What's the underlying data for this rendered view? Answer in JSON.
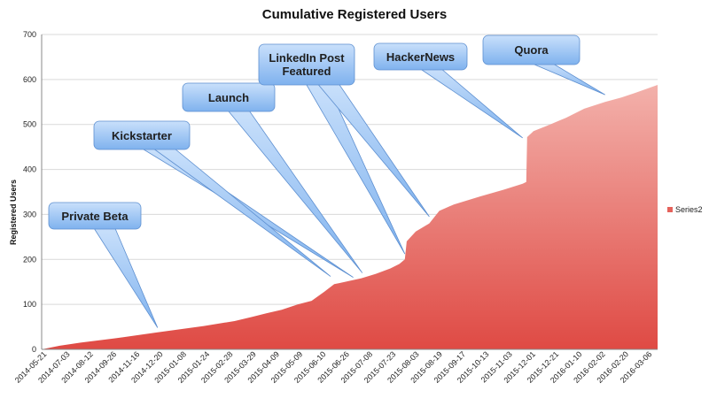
{
  "chart_data": {
    "type": "area",
    "title": "Cumulative Registered Users",
    "ylabel": "Registered Users",
    "xlabel": "",
    "ylim": [
      0,
      700
    ],
    "yticks": [
      0,
      100,
      200,
      300,
      400,
      500,
      600,
      700
    ],
    "xlim": [
      "2014-05-21",
      "2016-03-31"
    ],
    "xtick_labels": [
      "2014-05-21",
      "2014-07-03",
      "2014-08-12",
      "2014-09-26",
      "2014-11-16",
      "2014-12-20",
      "2015-01-08",
      "2015-01-24",
      "2015-02-28",
      "2015-03-29",
      "2015-04-09",
      "2015-05-09",
      "2015-06-10",
      "2015-06-26",
      "2015-07-08",
      "2015-07-23",
      "2015-08-03",
      "2015-08-19",
      "2015-09-17",
      "2015-10-13",
      "2015-11-03",
      "2015-12-01",
      "2015-12-21",
      "2016-01-10",
      "2016-02-02",
      "2016-02-20",
      "2016-03-06"
    ],
    "grid": true,
    "legend": "right",
    "series": [
      {
        "name": "Series2",
        "color": "#e5625b",
        "points": [
          {
            "x": "2014-05-21",
            "y": 0
          },
          {
            "x": "2014-06-10",
            "y": 8
          },
          {
            "x": "2014-07-03",
            "y": 15
          },
          {
            "x": "2014-08-12",
            "y": 25
          },
          {
            "x": "2014-09-26",
            "y": 38
          },
          {
            "x": "2014-11-16",
            "y": 52
          },
          {
            "x": "2014-12-20",
            "y": 63
          },
          {
            "x": "2015-01-08",
            "y": 72
          },
          {
            "x": "2015-01-24",
            "y": 80
          },
          {
            "x": "2015-02-10",
            "y": 88
          },
          {
            "x": "2015-02-28",
            "y": 100
          },
          {
            "x": "2015-03-15",
            "y": 108
          },
          {
            "x": "2015-03-29",
            "y": 128
          },
          {
            "x": "2015-04-09",
            "y": 145
          },
          {
            "x": "2015-04-25",
            "y": 152
          },
          {
            "x": "2015-05-09",
            "y": 158
          },
          {
            "x": "2015-05-25",
            "y": 168
          },
          {
            "x": "2015-06-10",
            "y": 180
          },
          {
            "x": "2015-06-20",
            "y": 190
          },
          {
            "x": "2015-06-26",
            "y": 200
          },
          {
            "x": "2015-06-28",
            "y": 240
          },
          {
            "x": "2015-07-08",
            "y": 262
          },
          {
            "x": "2015-07-23",
            "y": 280
          },
          {
            "x": "2015-08-03",
            "y": 308
          },
          {
            "x": "2015-08-19",
            "y": 322
          },
          {
            "x": "2015-09-17",
            "y": 340
          },
          {
            "x": "2015-10-13",
            "y": 355
          },
          {
            "x": "2015-11-03",
            "y": 368
          },
          {
            "x": "2015-11-07",
            "y": 372
          },
          {
            "x": "2015-11-08",
            "y": 472
          },
          {
            "x": "2015-11-15",
            "y": 485
          },
          {
            "x": "2015-12-01",
            "y": 498
          },
          {
            "x": "2015-12-21",
            "y": 515
          },
          {
            "x": "2016-01-10",
            "y": 535
          },
          {
            "x": "2016-02-02",
            "y": 550
          },
          {
            "x": "2016-02-20",
            "y": 560
          },
          {
            "x": "2016-03-06",
            "y": 570
          },
          {
            "x": "2016-03-31",
            "y": 588
          }
        ]
      }
    ],
    "annotations": [
      {
        "text": "Private Beta",
        "x": "2014-09-26"
      },
      {
        "text": "Kickstarter",
        "x": "2015-04-15"
      },
      {
        "text": "Launch",
        "x": "2015-05-10"
      },
      {
        "text": "LinkedIn Post\nFeatured",
        "x": "2015-06-26"
      },
      {
        "text": "LinkedIn Post\nFeatured",
        "x": "2015-07-23"
      },
      {
        "text": "HackerNews",
        "x": "2015-11-03"
      },
      {
        "text": "Quora",
        "x": "2016-02-02"
      }
    ]
  }
}
